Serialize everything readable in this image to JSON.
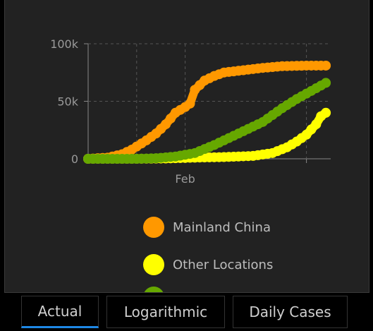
{
  "chart_data": {
    "type": "line",
    "y_ticks": [
      "100k",
      "50k",
      "0"
    ],
    "y_tick_values": [
      100000,
      50000,
      0
    ],
    "x_tick_labels": [
      "Feb"
    ],
    "ylim": [
      0,
      100000
    ],
    "x_days": [
      -10,
      40
    ],
    "x_feb_day": 10,
    "grid": true,
    "series": [
      {
        "name": "Mainland China",
        "color": "#ff9800",
        "points": [
          [
            -10,
            0
          ],
          [
            -6,
            1000
          ],
          [
            -3,
            4000
          ],
          [
            -1,
            8000
          ],
          [
            2,
            16000
          ],
          [
            4,
            22000
          ],
          [
            6,
            30000
          ],
          [
            8,
            40000
          ],
          [
            10,
            45000
          ],
          [
            11,
            48000
          ],
          [
            12,
            60000
          ],
          [
            14,
            68000
          ],
          [
            16,
            72000
          ],
          [
            18,
            75000
          ],
          [
            22,
            77000
          ],
          [
            26,
            79000
          ],
          [
            30,
            80500
          ],
          [
            35,
            81000
          ],
          [
            39,
            81000
          ]
        ]
      },
      {
        "name": "Other Locations",
        "color": "#ffff00",
        "points": [
          [
            -10,
            0
          ],
          [
            0,
            0
          ],
          [
            6,
            300
          ],
          [
            12,
            1000
          ],
          [
            18,
            1500
          ],
          [
            24,
            2500
          ],
          [
            28,
            5000
          ],
          [
            31,
            10000
          ],
          [
            33,
            15000
          ],
          [
            35,
            21000
          ],
          [
            37,
            30000
          ],
          [
            38,
            37000
          ],
          [
            39,
            40000
          ]
        ]
      },
      {
        "name": "",
        "color": "#66a800",
        "points": [
          [
            -10,
            0
          ],
          [
            0,
            0
          ],
          [
            4,
            500
          ],
          [
            8,
            2000
          ],
          [
            12,
            5000
          ],
          [
            16,
            12000
          ],
          [
            20,
            20000
          ],
          [
            24,
            28000
          ],
          [
            26,
            32000
          ],
          [
            28,
            38000
          ],
          [
            30,
            44000
          ],
          [
            33,
            52000
          ],
          [
            36,
            59000
          ],
          [
            39,
            66000
          ]
        ]
      }
    ]
  },
  "legend": [
    {
      "label": "Mainland China",
      "color": "#ff9800"
    },
    {
      "label": "Other Locations",
      "color": "#ffff00"
    },
    {
      "label": "",
      "color": "#66a800"
    }
  ],
  "tabs": [
    {
      "label": "Actual",
      "active": true
    },
    {
      "label": "Logarithmic",
      "active": false
    },
    {
      "label": "Daily Cases",
      "active": false
    }
  ]
}
